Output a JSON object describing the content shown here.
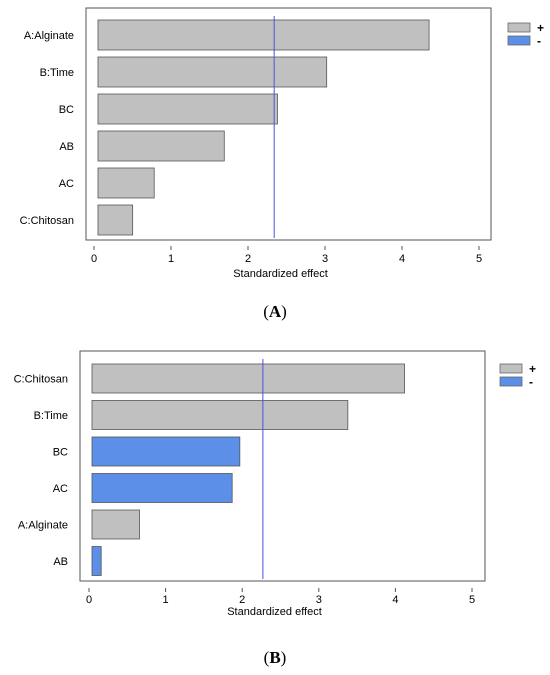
{
  "chart_data": [
    {
      "type": "bar",
      "orientation": "horizontal",
      "panel_label": "A",
      "categories": [
        "A:Alginate",
        "B:Time",
        "BC",
        "AB",
        "AC",
        "C:Chitosan"
      ],
      "values": [
        4.3,
        2.97,
        2.33,
        1.64,
        0.73,
        0.45
      ],
      "signs": [
        "+",
        "+",
        "+",
        "+",
        "+",
        "+"
      ],
      "reference_line": 2.34,
      "xlabel": "Standardized effect",
      "xlim": [
        0,
        5
      ],
      "xticks": [
        "0",
        "1",
        "2",
        "3",
        "4",
        "5"
      ],
      "legend": {
        "placement": "top-right",
        "entries": [
          {
            "label": "+",
            "color": "#c0c0c0"
          },
          {
            "label": "-",
            "color": "#5b8fe8"
          }
        ]
      },
      "grid": false
    },
    {
      "type": "bar",
      "orientation": "horizontal",
      "panel_label": "B",
      "categories": [
        "C:Chitosan",
        "B:Time",
        "BC",
        "AC",
        "A:Alginate",
        "AB"
      ],
      "values": [
        4.08,
        3.34,
        1.93,
        1.83,
        0.62,
        0.12
      ],
      "signs": [
        "+",
        "+",
        "-",
        "-",
        "+",
        "-"
      ],
      "reference_line": 2.27,
      "xlabel": "Standardized effect",
      "xlim": [
        0,
        5
      ],
      "xticks": [
        "0",
        "1",
        "2",
        "3",
        "4",
        "5"
      ],
      "legend": {
        "placement": "top-right",
        "entries": [
          {
            "label": "+",
            "color": "#c0c0c0"
          },
          {
            "label": "-",
            "color": "#5b8fe8"
          }
        ]
      },
      "grid": false
    }
  ],
  "colors": {
    "positive": "#c0c0c0",
    "negative": "#5b8fe8",
    "reference_line": "#5050e0",
    "frame": "#555555"
  }
}
